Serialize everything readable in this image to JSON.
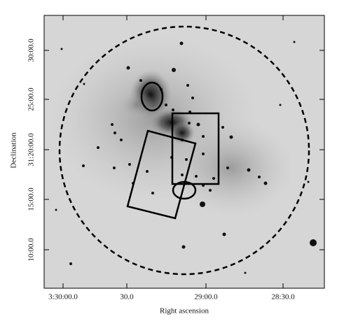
{
  "x_axis": {
    "label": "Right ascension",
    "ticks": [
      "3:30:00.0",
      "30.0",
      "29:00.0",
      "28:30.0"
    ]
  },
  "y_axis": {
    "label": "Declination",
    "ticks": [
      "30:00.0",
      "25:00.0",
      "31:20:00.0",
      "15:00.0",
      "10:00.0"
    ]
  }
}
